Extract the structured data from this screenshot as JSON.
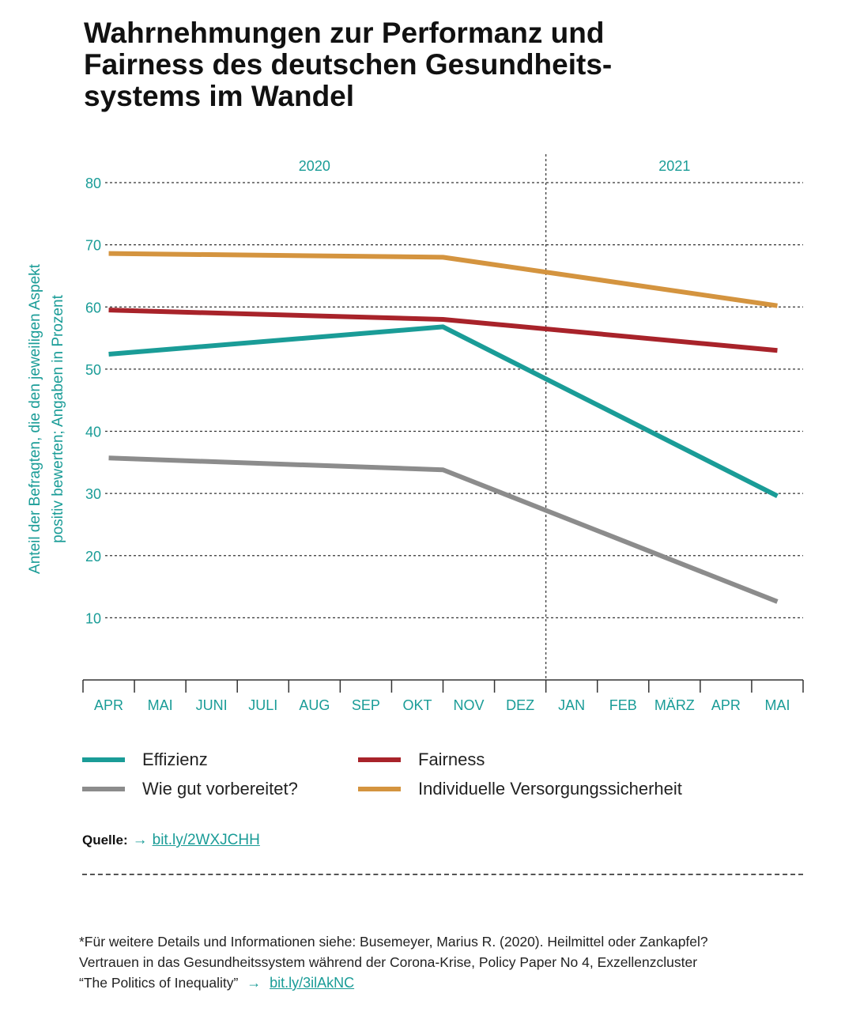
{
  "title": "Wahrnehmungen zur Performanz und Fairness des deutschen Gesundheits-systems im Wandel",
  "chart_data": {
    "type": "line",
    "ylabel": "Anteil der Befragten, die den jeweiligen Aspekt positiv bewerten; Angaben in Prozent",
    "ylim": [
      0,
      80
    ],
    "yticks": [
      10,
      20,
      30,
      40,
      50,
      60,
      70,
      80
    ],
    "grid": true,
    "categories": [
      "APR",
      "MAI",
      "JUNI",
      "JULI",
      "AUG",
      "SEP",
      "OKT",
      "NOV",
      "DEZ",
      "JAN",
      "FEB",
      "MÄRZ",
      "APR",
      "MAI"
    ],
    "years": [
      {
        "label": "2020",
        "from_index": 0,
        "to_index": 8
      },
      {
        "label": "2021",
        "from_index": 9,
        "to_index": 13
      }
    ],
    "series": [
      {
        "name": "Individuelle Versorgungssicherheit",
        "color": "#d4943f",
        "points": [
          {
            "i": 0,
            "y": 68.6
          },
          {
            "i": 6.5,
            "y": 68
          },
          {
            "i": 13,
            "y": 60.2
          }
        ]
      },
      {
        "name": "Fairness",
        "color": "#a8232a",
        "points": [
          {
            "i": 0,
            "y": 59.5
          },
          {
            "i": 6.5,
            "y": 58
          },
          {
            "i": 13,
            "y": 53
          }
        ]
      },
      {
        "name": "Effizienz",
        "color": "#1a9c97",
        "points": [
          {
            "i": 0,
            "y": 52.4
          },
          {
            "i": 6.5,
            "y": 56.8
          },
          {
            "i": 13,
            "y": 29.6
          }
        ]
      },
      {
        "name": "Wie gut vorbereitet?",
        "color": "#8c8c8c",
        "points": [
          {
            "i": 0,
            "y": 35.7
          },
          {
            "i": 6.5,
            "y": 33.8
          },
          {
            "i": 13,
            "y": 12.6
          }
        ]
      }
    ]
  },
  "legend": [
    {
      "label": "Effizienz",
      "color": "#1a9c97"
    },
    {
      "label": "Fairness",
      "color": "#a8232a"
    },
    {
      "label": "Wie gut vorbereitet?",
      "color": "#8c8c8c"
    },
    {
      "label": "Individuelle Versorgungssicherheit",
      "color": "#d4943f"
    }
  ],
  "source": {
    "label": "Quelle:",
    "arrow": "→",
    "link": "bit.ly/2WXJCHH"
  },
  "footnote": {
    "line1": "*Für weitere Details und Informationen siehe: Busemeyer, Marius R. (2020). Heilmittel oder Zankapfel?",
    "line2": "Vertrauen in das Gesundheitssystem während der Corona-Krise, Policy Paper No 4, Exzellenzcluster",
    "line3": "“The Politics of Inequality”",
    "arrow": "→",
    "link": "bit.ly/3ilAkNC"
  },
  "colors": {
    "accent": "#1a9c97",
    "axis": "#333333",
    "grid": "#333333"
  }
}
